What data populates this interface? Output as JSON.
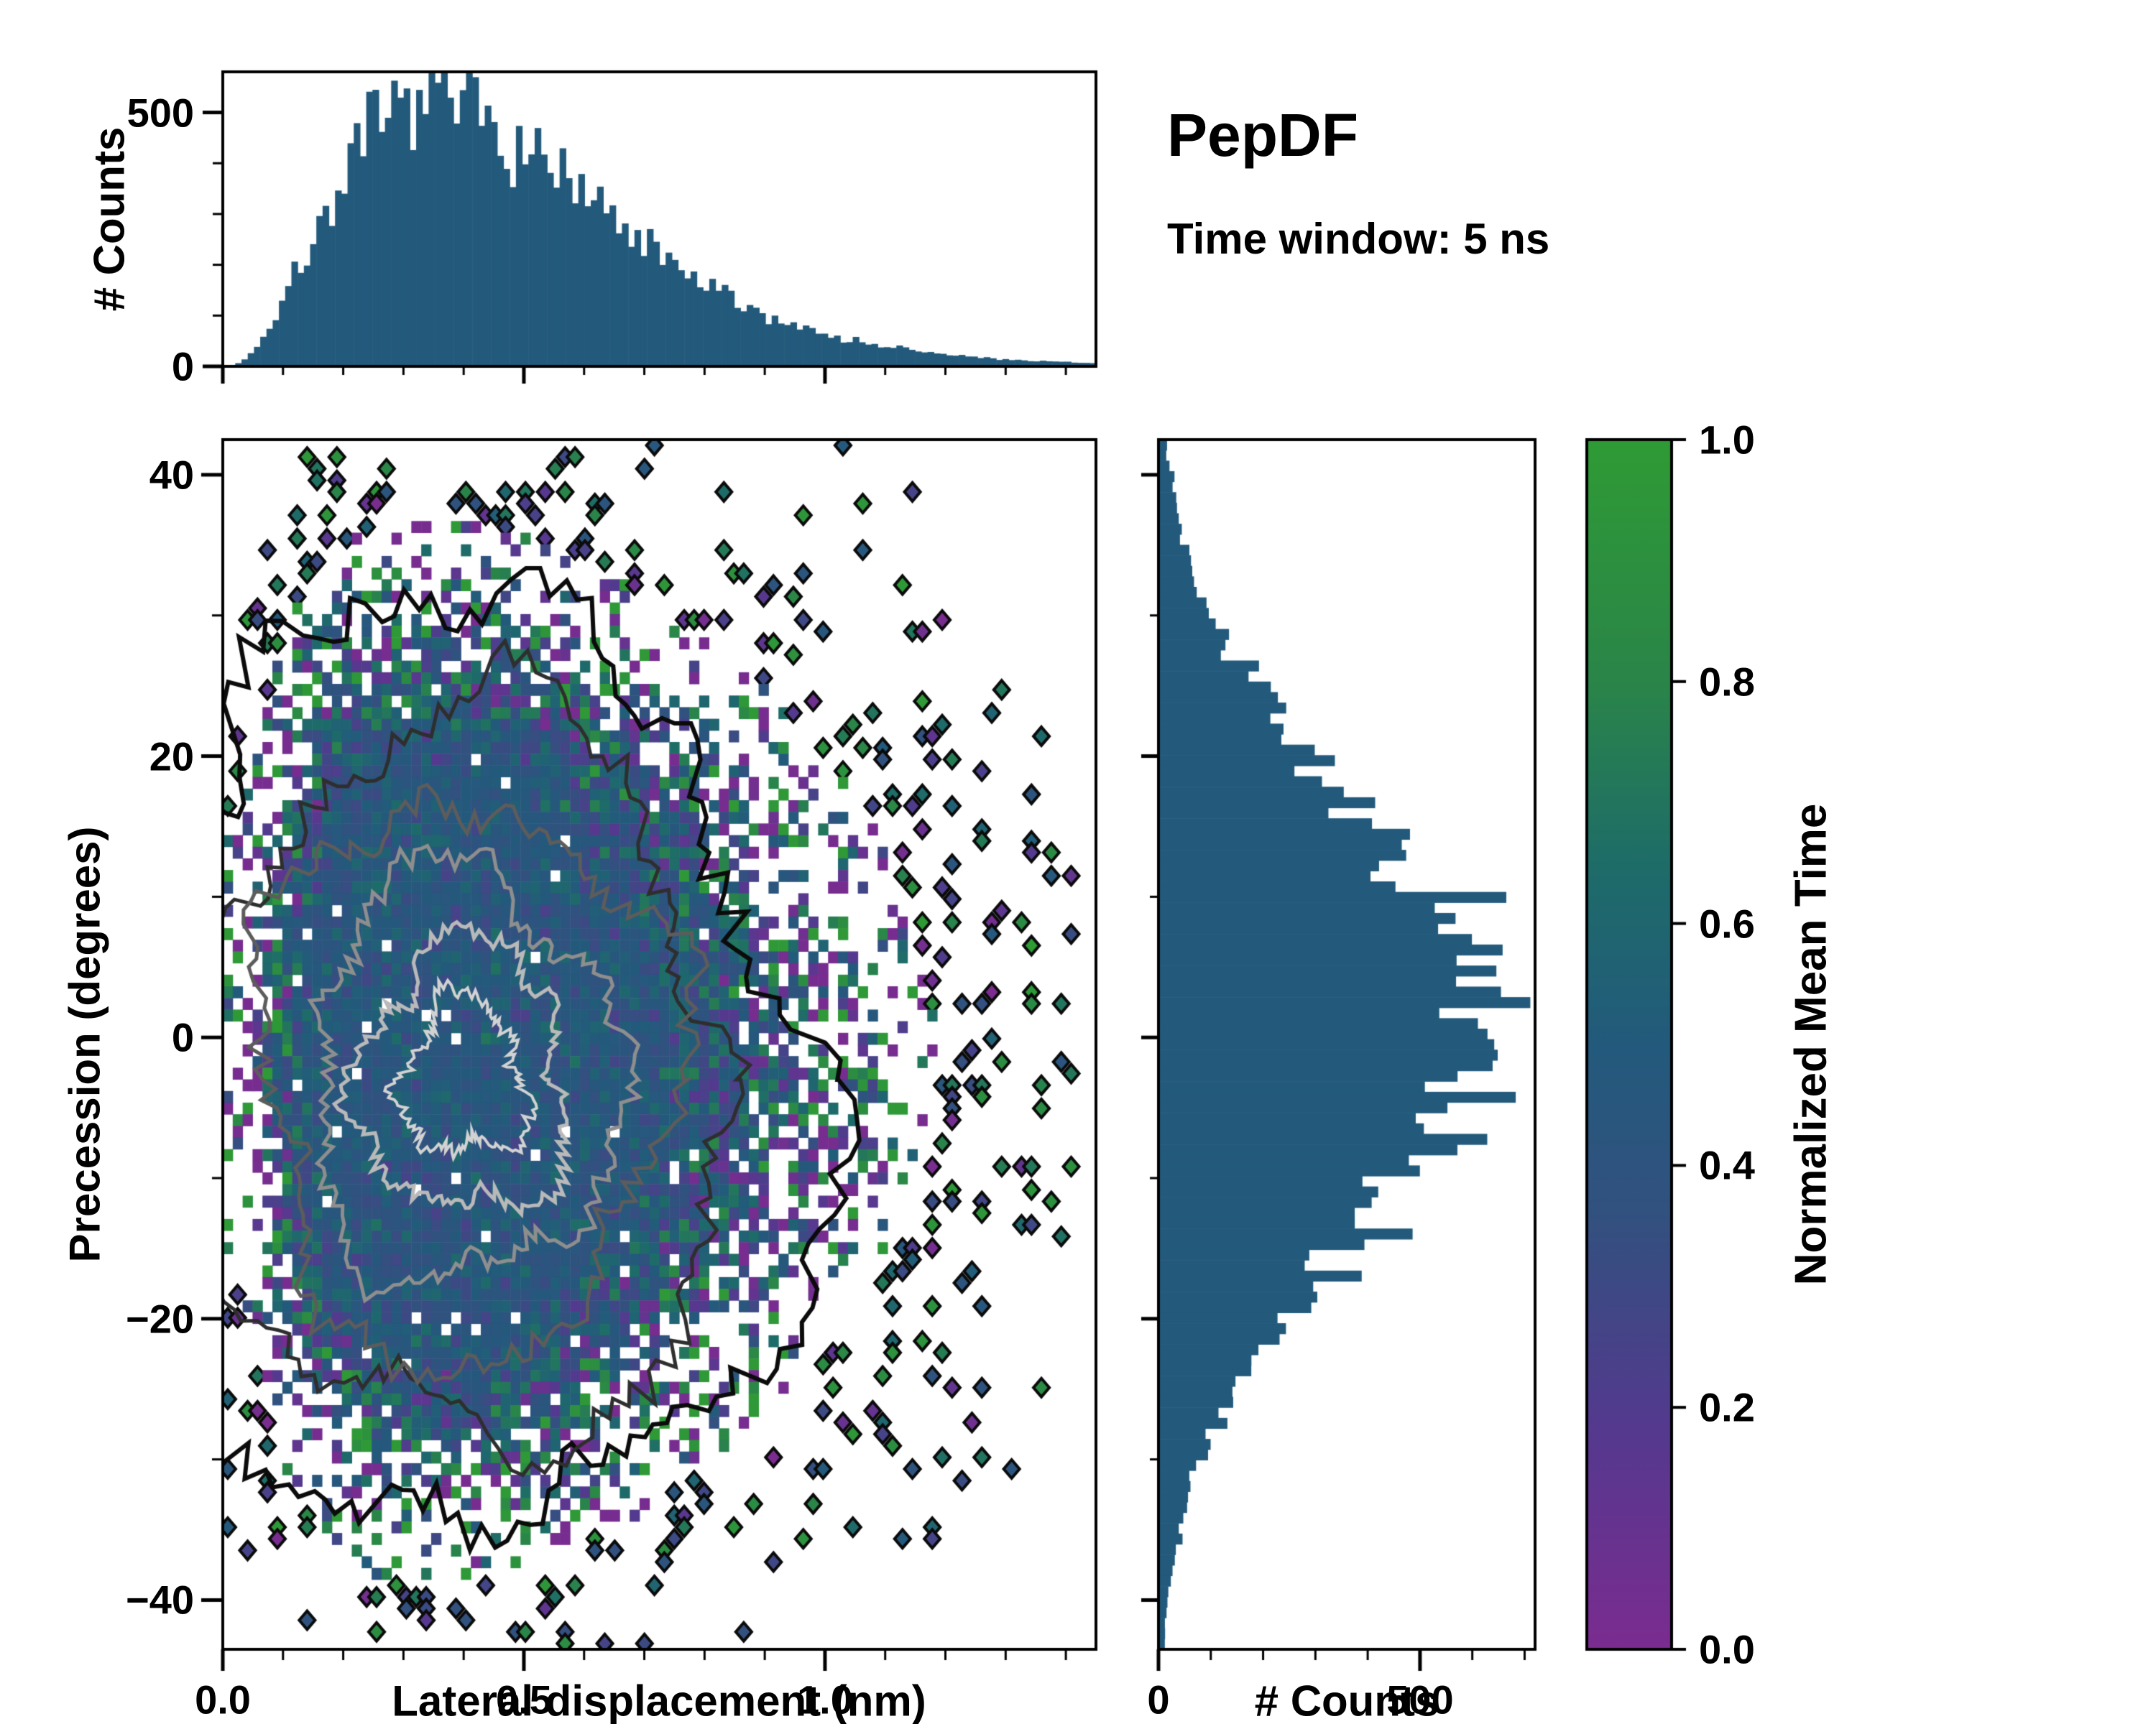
{
  "header": {
    "title": "PepDF",
    "subtitle": "Time window: 5 ns"
  },
  "colorbar": {
    "label": "Normalized Mean Time",
    "range": [
      0,
      1
    ],
    "tick_values": [
      0,
      0.2,
      0.4,
      0.6,
      0.8,
      1.0
    ],
    "tick_labels": [
      "0.0",
      "0.2",
      "0.4",
      "0.6",
      "0.8",
      "1.0"
    ],
    "colormap_stops": [
      [
        0.0,
        "#7b2c8f"
      ],
      [
        0.18,
        "#55398f"
      ],
      [
        0.36,
        "#32517f"
      ],
      [
        0.5,
        "#235a7c"
      ],
      [
        0.64,
        "#1e6b6a"
      ],
      [
        0.8,
        "#2a8549"
      ],
      [
        1.0,
        "#2f9b35"
      ]
    ]
  },
  "chart_data": [
    {
      "type": "bar",
      "name": "lateral-displacement-histogram",
      "ylabel": "# Counts",
      "xlabel": "",
      "xlim": [
        0,
        1.45
      ],
      "ylim": [
        0,
        580
      ],
      "ytick_values": [
        0,
        500
      ],
      "ytick_labels": [
        "0",
        "500"
      ],
      "bar_color": "#235a7c",
      "bins": 140,
      "model": {
        "kind": "gamma",
        "a": 2.6,
        "b": 0.135,
        "peak_counts": 520,
        "noise": 0.09,
        "seed": 7
      }
    },
    {
      "type": "heatmap",
      "name": "precession-vs-displacement-heatmap",
      "xlabel": "Lateral displacement (nm)",
      "ylabel": "Precession (degrees)",
      "xlim": [
        0,
        1.45
      ],
      "ylim": [
        -43.5,
        42.5
      ],
      "xtick_values": [
        0,
        0.5,
        1.0
      ],
      "xtick_labels": [
        "0.0",
        "0.5",
        "1.0"
      ],
      "ytick_values": [
        -40,
        -20,
        0,
        20,
        40
      ],
      "ytick_labels": [
        "−40",
        "−20",
        "0",
        "20",
        "40"
      ],
      "grid": {
        "nx": 88,
        "ny": 104
      },
      "density_model": {
        "x": {
          "kind": "gamma",
          "a": 2.6,
          "b": 0.135
        },
        "y": {
          "kind": "gauss",
          "mean": -1,
          "sigma": 15.5
        },
        "occupancy_gain": 4,
        "max_occupancy": 0.98,
        "edge_boost": 0.35,
        "edge_scale": 0.15,
        "outlier_p": 0.2,
        "seed": 11
      },
      "value_model": {
        "base": 0.45,
        "core_sd": 0.09,
        "edge_sd": 0.5,
        "clip": [
          0.02,
          0.98
        ]
      },
      "contours": {
        "center": [
          0.4,
          -3
        ],
        "levels": [
          {
            "rx": 0.56,
            "ry": 33,
            "color": "#0b0b0b",
            "lw": 6,
            "jag": 0.2,
            "seed": 21
          },
          {
            "rx": 0.44,
            "ry": 26,
            "color": "#2e2e2e",
            "lw": 5,
            "jag": 0.2,
            "seed": 22
          },
          {
            "rx": 0.345,
            "ry": 20,
            "color": "#5c5c5c",
            "lw": 5,
            "jag": 0.21,
            "seed": 23
          },
          {
            "rx": 0.255,
            "ry": 14.5,
            "color": "#8e8e8e",
            "lw": 5,
            "jag": 0.22,
            "seed": 24
          },
          {
            "rx": 0.175,
            "ry": 9.5,
            "color": "#b9b9b9",
            "lw": 5,
            "jag": 0.26,
            "seed": 25
          },
          {
            "rx": 0.1,
            "ry": 5.5,
            "color": "#d2d2d2",
            "lw": 4,
            "jag": 0.35,
            "seed": 26
          }
        ]
      }
    },
    {
      "type": "bar",
      "orientation": "horizontal",
      "name": "precession-histogram",
      "xlabel": "# Counts",
      "ylabel": "",
      "xlim": [
        0,
        720
      ],
      "ylim": [
        -43.5,
        42.5
      ],
      "xtick_values": [
        0,
        500
      ],
      "xtick_labels": [
        "0",
        "500"
      ],
      "bar_color": "#235a7c",
      "bins": 115,
      "model": {
        "kind": "gauss",
        "mean": 1,
        "sigma": 15.5,
        "peak_counts": 615,
        "noise": 0.1,
        "seed": 13
      }
    }
  ]
}
